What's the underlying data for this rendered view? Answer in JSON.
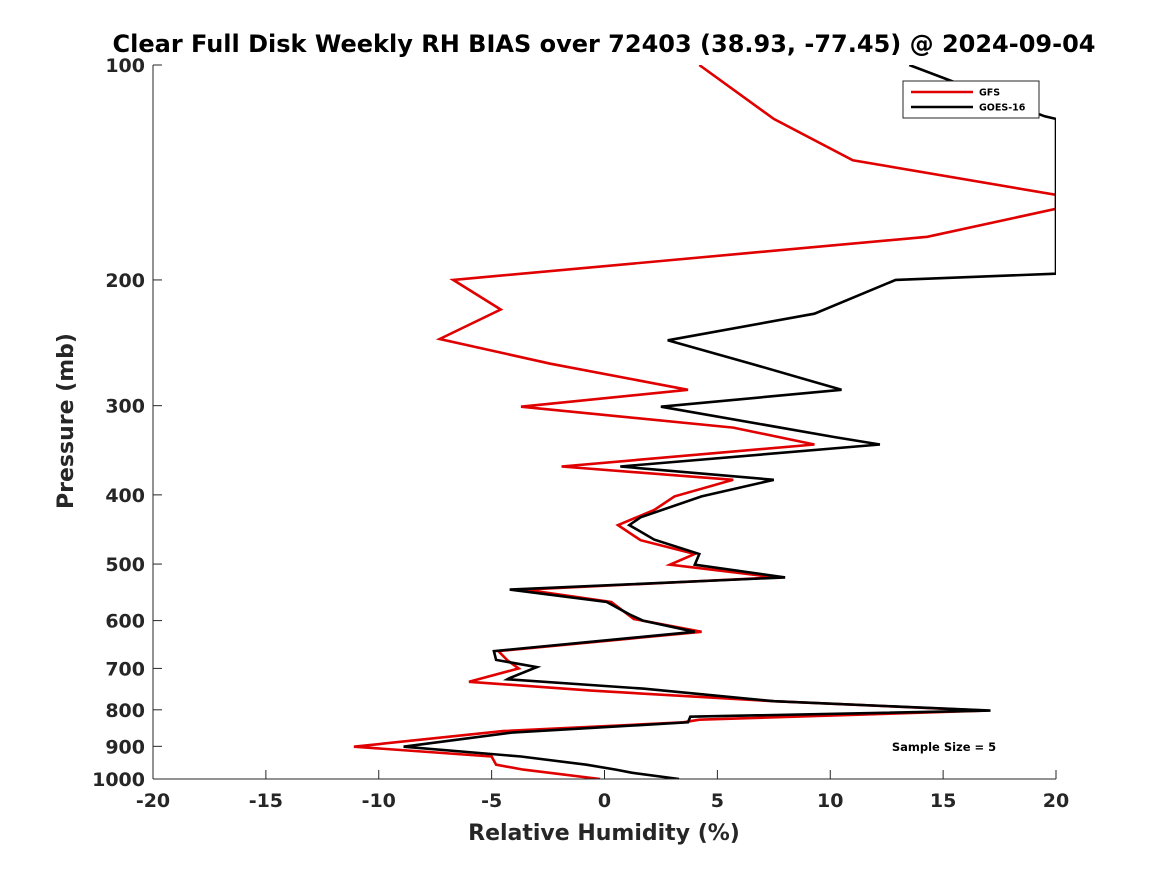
{
  "chart_data": {
    "type": "line",
    "title": "Clear Full Disk Weekly RH BIAS over 72403 (38.93, -77.45) @ 2024-09-04",
    "xlabel": "Relative Humidity (%)",
    "ylabel": "Pressure (mb)",
    "xlim": [
      -20,
      20
    ],
    "ylim": [
      100,
      1000
    ],
    "y_scale": "log",
    "y_reversed": true,
    "xticks": [
      -20,
      -15,
      -10,
      -5,
      0,
      5,
      10,
      15,
      20
    ],
    "yticks": [
      100,
      200,
      300,
      400,
      500,
      600,
      700,
      800,
      900,
      1000
    ],
    "grid": false,
    "legend_position": "top-right",
    "annotation": "Sample Size = 5",
    "series": [
      {
        "name": "GFS",
        "color": "#e00000",
        "points": [
          [
            4.2,
            100
          ],
          [
            7.5,
            119
          ],
          [
            11.0,
            136
          ],
          [
            20.0,
            152
          ],
          [
            20.0,
            159
          ],
          [
            14.3,
            174
          ],
          [
            -6.7,
            200
          ],
          [
            -4.6,
            220
          ],
          [
            -7.3,
            242
          ],
          [
            -2.4,
            262
          ],
          [
            3.7,
            285
          ],
          [
            -3.7,
            301
          ],
          [
            5.7,
            322
          ],
          [
            9.3,
            340
          ],
          [
            -1.9,
            365
          ],
          [
            5.7,
            381
          ],
          [
            3.1,
            402
          ],
          [
            2.2,
            420
          ],
          [
            0.6,
            441
          ],
          [
            1.6,
            463
          ],
          [
            4.0,
            484
          ],
          [
            2.9,
            501
          ],
          [
            7.6,
            522
          ],
          [
            -3.5,
            543
          ],
          [
            0.3,
            565
          ],
          [
            1.3,
            597
          ],
          [
            4.3,
            622
          ],
          [
            -4.7,
            662
          ],
          [
            -4.3,
            682
          ],
          [
            -3.8,
            700
          ],
          [
            -6.0,
            731
          ],
          [
            -0.6,
            752
          ],
          [
            7.5,
            778
          ],
          [
            16.9,
            802
          ],
          [
            4.2,
            826
          ],
          [
            3.5,
            833
          ],
          [
            -4.5,
            857
          ],
          [
            -11.1,
            901
          ],
          [
            -5.0,
            930
          ],
          [
            -4.8,
            955
          ],
          [
            -3.6,
            970
          ],
          [
            -0.2,
            1000
          ]
        ]
      },
      {
        "name": "GOES-16",
        "color": "#000000",
        "points": [
          [
            13.5,
            100
          ],
          [
            19.5,
            118
          ],
          [
            20.0,
            119
          ],
          [
            20.0,
            196
          ],
          [
            12.9,
            200
          ],
          [
            9.3,
            223
          ],
          [
            2.8,
            243
          ],
          [
            6.5,
            262
          ],
          [
            10.5,
            285
          ],
          [
            2.5,
            301
          ],
          [
            10.2,
            332
          ],
          [
            12.2,
            340
          ],
          [
            0.7,
            365
          ],
          [
            7.5,
            381
          ],
          [
            4.3,
            402
          ],
          [
            1.6,
            430
          ],
          [
            1.1,
            441
          ],
          [
            2.2,
            462
          ],
          [
            4.2,
            484
          ],
          [
            4.0,
            501
          ],
          [
            8.0,
            522
          ],
          [
            -4.2,
            543
          ],
          [
            0.1,
            565
          ],
          [
            1.1,
            588
          ],
          [
            1.7,
            600
          ],
          [
            4.0,
            622
          ],
          [
            -4.9,
            662
          ],
          [
            -4.8,
            681
          ],
          [
            -3.0,
            697
          ],
          [
            -4.2,
            722
          ],
          [
            -4.3,
            725
          ],
          [
            1.7,
            747
          ],
          [
            7.5,
            778
          ],
          [
            17.1,
            802
          ],
          [
            3.8,
            818
          ],
          [
            3.7,
            833
          ],
          [
            -4.1,
            861
          ],
          [
            -8.9,
            901
          ],
          [
            -3.7,
            930
          ],
          [
            -0.8,
            955
          ],
          [
            0.5,
            970
          ],
          [
            1.2,
            980
          ],
          [
            3.3,
            1000
          ]
        ]
      }
    ]
  }
}
